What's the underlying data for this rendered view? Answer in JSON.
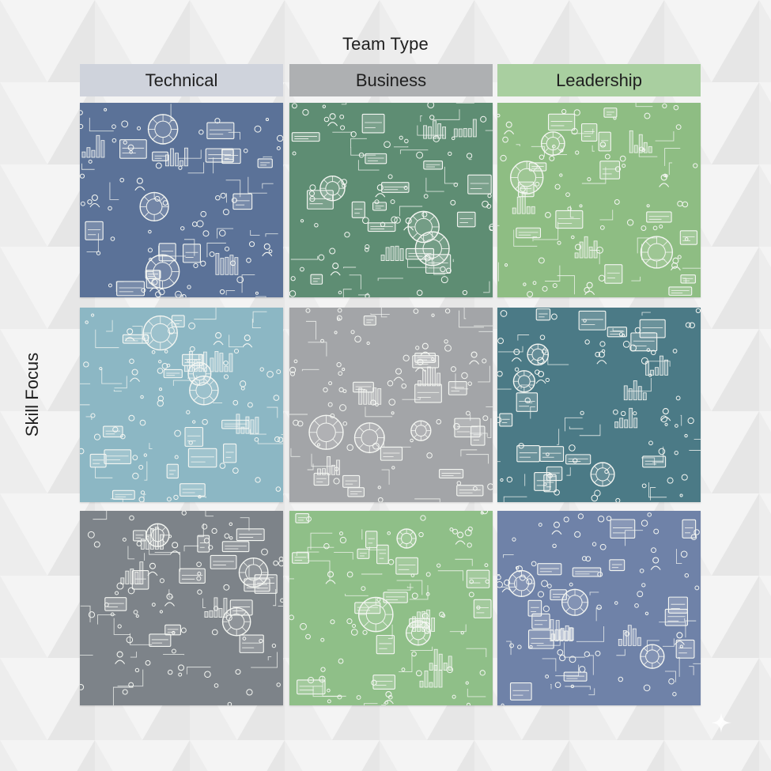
{
  "axis_title_top": "Team Type",
  "axis_title_left": "Skill Focus",
  "columns": [
    {
      "label": "Technical",
      "header_color": "#cfd3dc"
    },
    {
      "label": "Business",
      "header_color": "#aeb0b2"
    },
    {
      "label": "Leadership",
      "header_color": "#a9cfa0"
    }
  ],
  "rows": [
    [
      {
        "name": "technical-row-1",
        "fill": "#5b7298",
        "motif": "brain-network"
      },
      {
        "name": "business-row-1",
        "fill": "#5e8d73",
        "motif": "business-analytics"
      },
      {
        "name": "leadership-row-1",
        "fill": "#8ebd83",
        "motif": "team-collaboration"
      }
    ],
    [
      {
        "name": "technical-row-2",
        "fill": "#8cb7c4",
        "motif": "cloud-systems"
      },
      {
        "name": "business-row-2",
        "fill": "#a3a5a8",
        "motif": "growth-charts"
      },
      {
        "name": "leadership-row-2",
        "fill": "#4b7a86",
        "motif": "org-chart"
      }
    ],
    [
      {
        "name": "technical-row-3",
        "fill": "#7d8389",
        "motif": "devices-people"
      },
      {
        "name": "business-row-3",
        "fill": "#8fbf88",
        "motif": "ideas-charts"
      },
      {
        "name": "leadership-row-3",
        "fill": "#6f82a8",
        "motif": "ratings-hub"
      }
    ]
  ]
}
